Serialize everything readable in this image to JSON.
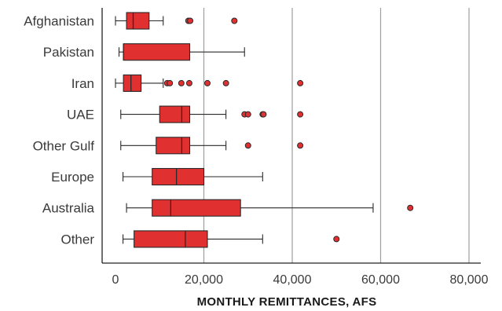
{
  "chart_data": {
    "type": "boxplot",
    "title": "",
    "xlabel": "MONTHLY REMITTANCES, AFS",
    "ylabel": "",
    "xlim": [
      -2500,
      83000
    ],
    "xticks": [
      0,
      20000,
      40000,
      60000,
      80000
    ],
    "xtick_labels": [
      "0",
      "20,000",
      "40,000",
      "60,000",
      "80,000"
    ],
    "grid": "vertical",
    "colors": {
      "box_fill": "#e03030",
      "box_stroke": "#2a2a2a",
      "grid": "#9e9e9e"
    },
    "categories": [
      "Afghanistan",
      "Pakistan",
      "Iran",
      "UAE",
      "Other Gulf",
      "Europe",
      "Australia",
      "Other"
    ],
    "series": [
      {
        "category": "Afghanistan",
        "whisker_low": 0,
        "q1": 2500,
        "median": 4000,
        "q3": 7600,
        "whisker_high": 10800,
        "outliers": [
          16500,
          16900,
          26900
        ]
      },
      {
        "category": "Pakistan",
        "whisker_low": 800,
        "q1": 1800,
        "median": 1800,
        "q3": 16800,
        "whisker_high": 29200,
        "outliers": []
      },
      {
        "category": "Iran",
        "whisker_low": 0,
        "q1": 1800,
        "median": 3500,
        "q3": 5800,
        "whisker_high": 10800,
        "outliers": [
          11700,
          12300,
          14900,
          16700,
          20800,
          25000,
          41800
        ]
      },
      {
        "category": "UAE",
        "whisker_low": 1200,
        "q1": 10000,
        "median": 15000,
        "q3": 16800,
        "whisker_high": 25000,
        "outliers": [
          29200,
          30000,
          33300,
          33500,
          41800
        ]
      },
      {
        "category": "Other Gulf",
        "whisker_low": 1200,
        "q1": 9200,
        "median": 15000,
        "q3": 16800,
        "whisker_high": 25000,
        "outliers": [
          30000,
          41800
        ]
      },
      {
        "category": "Europe",
        "whisker_low": 1700,
        "q1": 8300,
        "median": 13800,
        "q3": 20000,
        "whisker_high": 33300,
        "outliers": []
      },
      {
        "category": "Australia",
        "whisker_low": 2500,
        "q1": 8300,
        "median": 12500,
        "q3": 28300,
        "whisker_high": 58300,
        "outliers": [
          66700
        ]
      },
      {
        "category": "Other",
        "whisker_low": 1700,
        "q1": 4200,
        "median": 15800,
        "q3": 20800,
        "whisker_high": 33300,
        "outliers": [
          50000
        ]
      }
    ]
  }
}
